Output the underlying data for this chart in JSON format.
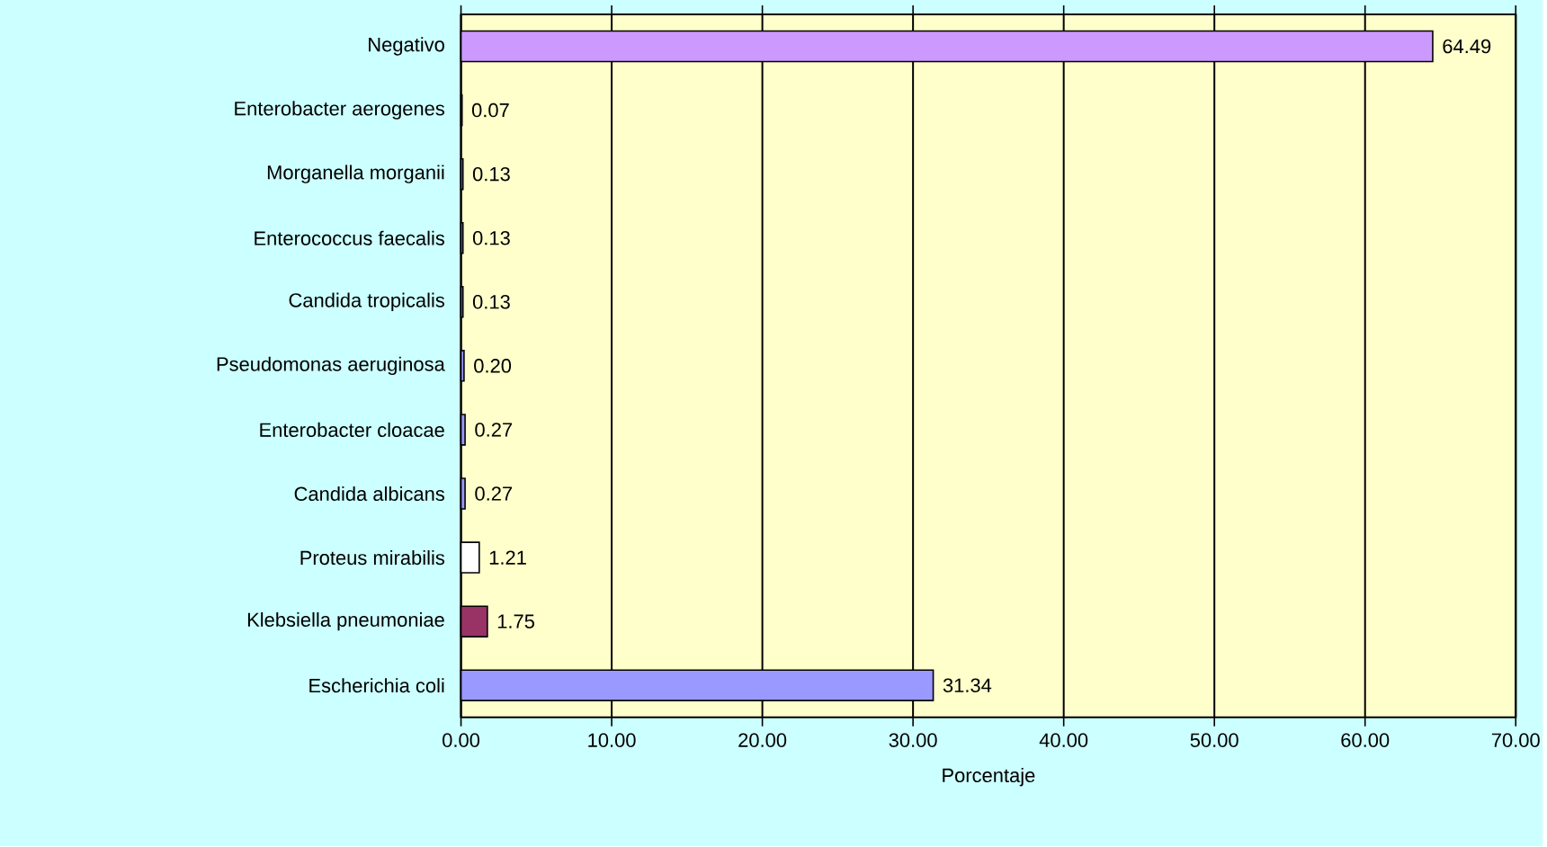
{
  "chart_data": {
    "type": "bar",
    "orientation": "horizontal",
    "xlabel": "Porcentaje",
    "categories": [
      "Negativo",
      "Enterobacter aerogenes",
      "Morganella morganii",
      "Enterococcus faecalis",
      "Candida tropicalis",
      "Pseudomonas aeruginosa",
      "Enterobacter cloacae",
      "Candida albicans",
      "Proteus mirabilis",
      "Klebsiella pneumoniae",
      "Escherichia coli"
    ],
    "values": [
      64.49,
      0.07,
      0.13,
      0.13,
      0.13,
      0.2,
      0.27,
      0.27,
      1.21,
      1.75,
      31.34
    ],
    "value_labels": [
      "64.49",
      "0.07",
      "0.13",
      "0.13",
      "0.13",
      "0.20",
      "0.27",
      "0.27",
      "1.21",
      "1.75",
      "31.34"
    ],
    "colors": [
      "#cc99ff",
      "#9999ff",
      "#9999ff",
      "#9999ff",
      "#9999ff",
      "#9999ff",
      "#9999ff",
      "#9999ff",
      "#ffffff",
      "#993366",
      "#9999ff"
    ],
    "xlim": [
      0,
      70
    ],
    "xticks": [
      {
        "value": 0,
        "label": "0.00"
      },
      {
        "value": 10,
        "label": "10.00"
      },
      {
        "value": 20,
        "label": "20.00"
      },
      {
        "value": 30,
        "label": "30.00"
      },
      {
        "value": 40,
        "label": "40.00"
      },
      {
        "value": 50,
        "label": "50.00"
      },
      {
        "value": 60,
        "label": "60.00"
      },
      {
        "value": 70,
        "label": "70.00"
      }
    ],
    "grid": "x"
  }
}
